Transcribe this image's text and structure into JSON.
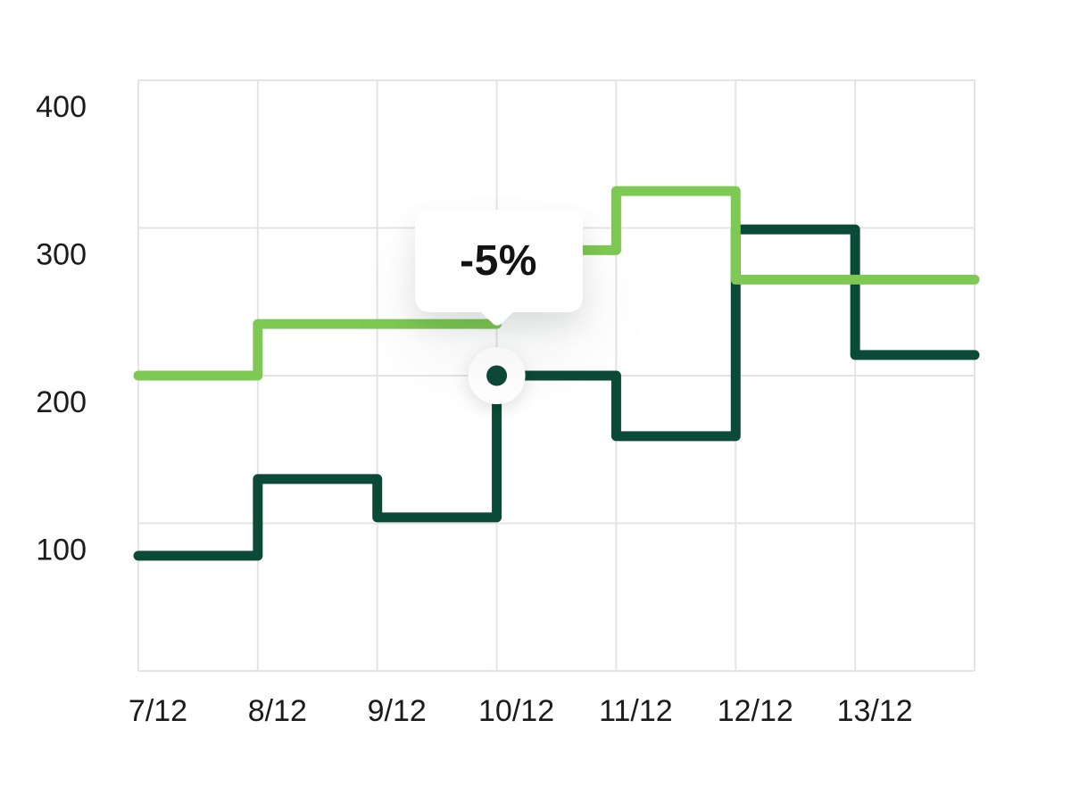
{
  "chart_data": {
    "type": "line",
    "line_style": "step-after",
    "categories": [
      "7/12",
      "8/12",
      "9/12",
      "10/12",
      "11/12",
      "12/12",
      "13/12"
    ],
    "series": [
      {
        "name": "dark-green",
        "color": "#0C4A38",
        "values": [
          78,
          130,
          104,
          200,
          159,
          299,
          214
        ]
      },
      {
        "name": "light-green",
        "color": "#7EC953",
        "values": [
          200,
          235,
          235,
          285,
          325,
          265,
          265
        ]
      }
    ],
    "ylim": [
      0,
      400
    ],
    "yticks": [
      100,
      200,
      300,
      400
    ],
    "grid": true,
    "legend": "none",
    "line_width": 11
  },
  "tooltip": {
    "label": "-5%",
    "category": "10/12",
    "points_to_series": "light-green"
  },
  "marker": {
    "series": "dark-green",
    "category": "10/12"
  },
  "colors": {
    "background": "#FFFFFF",
    "gridline": "#E6E4E2",
    "axis_text": "#1B1B1B",
    "tooltip_bg": "#FFFFFF",
    "tooltip_text": "#131313",
    "marker_halo": "#FFFFFF"
  }
}
